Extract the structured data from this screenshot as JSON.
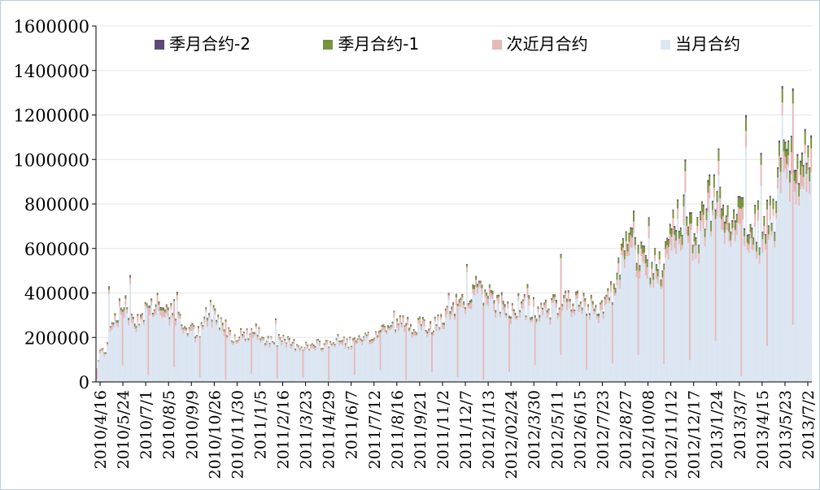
{
  "chart_data": {
    "type": "bar",
    "stacked": true,
    "ylim": [
      0,
      1600000
    ],
    "y_ticks": [
      "0",
      "200000",
      "400000",
      "600000",
      "800000",
      "1000000",
      "1200000",
      "1400000",
      "1600000"
    ],
    "x_tick_labels": [
      "2010/4/16",
      "2010/5/24",
      "2010/7/1",
      "2010/8/5",
      "2010/9/9",
      "2010/10/26",
      "2010/11/30",
      "2011/1/5",
      "2011/2/16",
      "2011/3/23",
      "2011/4/29",
      "2011/6/7",
      "2011/7/12",
      "2011/8/16",
      "2011/9/21",
      "2011/11/2",
      "2011/12/7",
      "2012/1/13",
      "2012/02/24",
      "2012/3/30",
      "2012/5/11",
      "2012/6/15",
      "2012/7/23",
      "2012/8/27",
      "2012/10/08",
      "2012/11/12",
      "2012/12/17",
      "2013/1/24",
      "2013/3/7",
      "2013/4/15",
      "2013/5/23",
      "2013/7/2"
    ],
    "legend_position": "top",
    "series": [
      {
        "name": "季月合约-2",
        "color": "#60497a"
      },
      {
        "name": "季月合约-1",
        "color": "#77933c"
      },
      {
        "name": "次近月合约",
        "color": "#e6b9b8"
      },
      {
        "name": "当月合约",
        "color": "#dce6f2"
      }
    ],
    "total_anchors": [
      [
        0,
        60000
      ],
      [
        2,
        140000
      ],
      [
        6,
        150000
      ],
      [
        10,
        280000
      ],
      [
        14,
        320000
      ],
      [
        18,
        360000
      ],
      [
        22,
        300000
      ],
      [
        28,
        290000
      ],
      [
        33,
        340000
      ],
      [
        38,
        360000
      ],
      [
        44,
        330000
      ],
      [
        50,
        340000
      ],
      [
        56,
        260000
      ],
      [
        62,
        240000
      ],
      [
        68,
        220000
      ],
      [
        75,
        330000
      ],
      [
        82,
        280000
      ],
      [
        90,
        210000
      ],
      [
        98,
        220000
      ],
      [
        105,
        230000
      ],
      [
        112,
        200000
      ],
      [
        120,
        190000
      ],
      [
        130,
        175000
      ],
      [
        140,
        160000
      ],
      [
        150,
        175000
      ],
      [
        160,
        190000
      ],
      [
        170,
        180000
      ],
      [
        180,
        200000
      ],
      [
        190,
        250000
      ],
      [
        200,
        270000
      ],
      [
        210,
        260000
      ],
      [
        220,
        250000
      ],
      [
        230,
        290000
      ],
      [
        240,
        380000
      ],
      [
        250,
        420000
      ],
      [
        260,
        380000
      ],
      [
        270,
        340000
      ],
      [
        280,
        350000
      ],
      [
        290,
        330000
      ],
      [
        300,
        340000
      ],
      [
        310,
        380000
      ],
      [
        320,
        350000
      ],
      [
        330,
        340000
      ],
      [
        340,
        400000
      ],
      [
        350,
        640000
      ],
      [
        358,
        580000
      ],
      [
        366,
        540000
      ],
      [
        374,
        520000
      ],
      [
        382,
        760000
      ],
      [
        390,
        740000
      ],
      [
        398,
        700000
      ],
      [
        406,
        860000
      ],
      [
        414,
        820000
      ],
      [
        422,
        760000
      ],
      [
        430,
        780000
      ],
      [
        438,
        700000
      ],
      [
        446,
        740000
      ],
      [
        452,
        1050000
      ],
      [
        458,
        1100000
      ],
      [
        460,
        880000
      ],
      [
        466,
        1000000
      ],
      [
        470,
        1010000
      ]
    ],
    "spikes": [
      [
        8,
        430000
      ],
      [
        22,
        480000
      ],
      [
        40,
        400000
      ],
      [
        53,
        405000
      ],
      [
        72,
        335000
      ],
      [
        78,
        330000
      ],
      [
        118,
        285000
      ],
      [
        196,
        320000
      ],
      [
        232,
        400000
      ],
      [
        244,
        530000
      ],
      [
        252,
        455000
      ],
      [
        284,
        440000
      ],
      [
        306,
        575000
      ],
      [
        354,
        770000
      ],
      [
        364,
        740000
      ],
      [
        388,
        1000000
      ],
      [
        410,
        1050000
      ],
      [
        428,
        1200000
      ],
      [
        438,
        1030000
      ],
      [
        452,
        1330000
      ],
      [
        459,
        1320000
      ]
    ]
  }
}
